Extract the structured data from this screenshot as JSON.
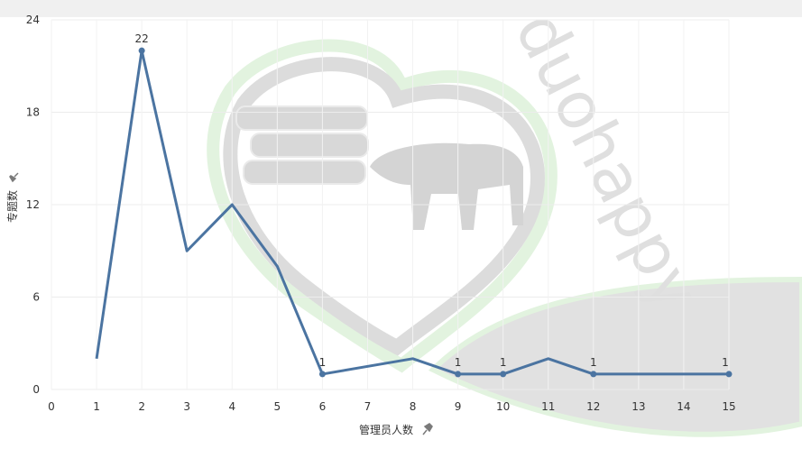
{
  "chart_data": {
    "type": "line",
    "xlabel": "管理员人数",
    "ylabel": "专题数",
    "x_ticks": [
      0,
      1,
      2,
      3,
      4,
      5,
      6,
      7,
      8,
      9,
      10,
      11,
      12,
      13,
      14,
      15
    ],
    "y_ticks": [
      0,
      6,
      12,
      18,
      24
    ],
    "xlim": [
      0,
      15
    ],
    "ylim": [
      0,
      24
    ],
    "grid": true,
    "series": [
      {
        "color": "#4b74a1",
        "x": [
          1,
          2,
          3,
          4,
          5,
          6,
          8,
          9,
          10,
          11,
          12,
          15
        ],
        "y": [
          2,
          22,
          9,
          12,
          8,
          1,
          2,
          1,
          1,
          2,
          1,
          1
        ],
        "labels": [
          "",
          "22",
          "",
          "",
          "",
          "1",
          "",
          "1",
          "1",
          "",
          "1",
          "1"
        ]
      }
    ],
    "watermark": {
      "text": "duohappy",
      "colors": [
        "#d9d9d9",
        "#dff2dc"
      ]
    }
  }
}
